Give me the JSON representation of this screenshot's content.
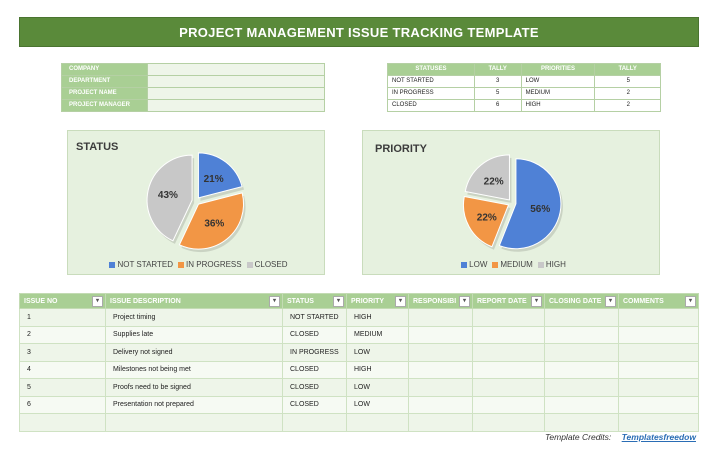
{
  "title": "PROJECT MANAGEMENT ISSUE TRACKING TEMPLATE",
  "info_fields": [
    "COMPANY",
    "DEPARTMENT",
    "PROJECT NAME",
    "PROJECT MANAGER"
  ],
  "tally": {
    "headers": [
      "STATUSES",
      "TALLY",
      "PRIORITIES",
      "TALLY"
    ],
    "rows": [
      [
        "NOT STARTED",
        "3",
        "LOW",
        "5"
      ],
      [
        "IN PROGRESS",
        "5",
        "MEDIUM",
        "2"
      ],
      [
        "CLOSED",
        "6",
        "HIGH",
        "2"
      ]
    ]
  },
  "chart_data": [
    {
      "type": "pie",
      "title": "STATUS",
      "categories": [
        "NOT STARTED",
        "IN PROGRESS",
        "CLOSED"
      ],
      "values": [
        21,
        36,
        43
      ],
      "labels": [
        "21%",
        "36%",
        "43%"
      ],
      "colors": [
        "#4f81d6",
        "#f29645",
        "#c8c8c8"
      ],
      "legend": "bottom"
    },
    {
      "type": "pie",
      "title": "PRIORITY",
      "categories": [
        "LOW",
        "MEDIUM",
        "HIGH"
      ],
      "values": [
        56,
        22,
        22
      ],
      "labels": [
        "56%",
        "22%",
        "22%"
      ],
      "colors": [
        "#4f81d6",
        "#f29645",
        "#c8c8c8"
      ],
      "legend": "bottom"
    }
  ],
  "issues": {
    "headers": [
      "ISSUE NO",
      "ISSUE DESCRIPTION",
      "STATUS",
      "PRIORITY",
      "RESPONSIBI",
      "REPORT DATE",
      "CLOSING DATE",
      "COMMENTS"
    ],
    "rows": [
      [
        "1",
        "Project timing",
        "NOT STARTED",
        "HIGH"
      ],
      [
        "2",
        "Supplies late",
        "CLOSED",
        "MEDIUM"
      ],
      [
        "3",
        "Delivery not signed",
        "IN PROGRESS",
        "LOW"
      ],
      [
        "4",
        "Milestones not being met",
        "CLOSED",
        "HIGH"
      ],
      [
        "5",
        "Proofs need to be signed",
        "CLOSED",
        "LOW"
      ],
      [
        "6",
        "Presentation not prepared",
        "CLOSED",
        "LOW"
      ],
      [
        "",
        "",
        "",
        ""
      ]
    ]
  },
  "credits": {
    "label": "Template Credits:",
    "link": "Templatesfreedow"
  }
}
